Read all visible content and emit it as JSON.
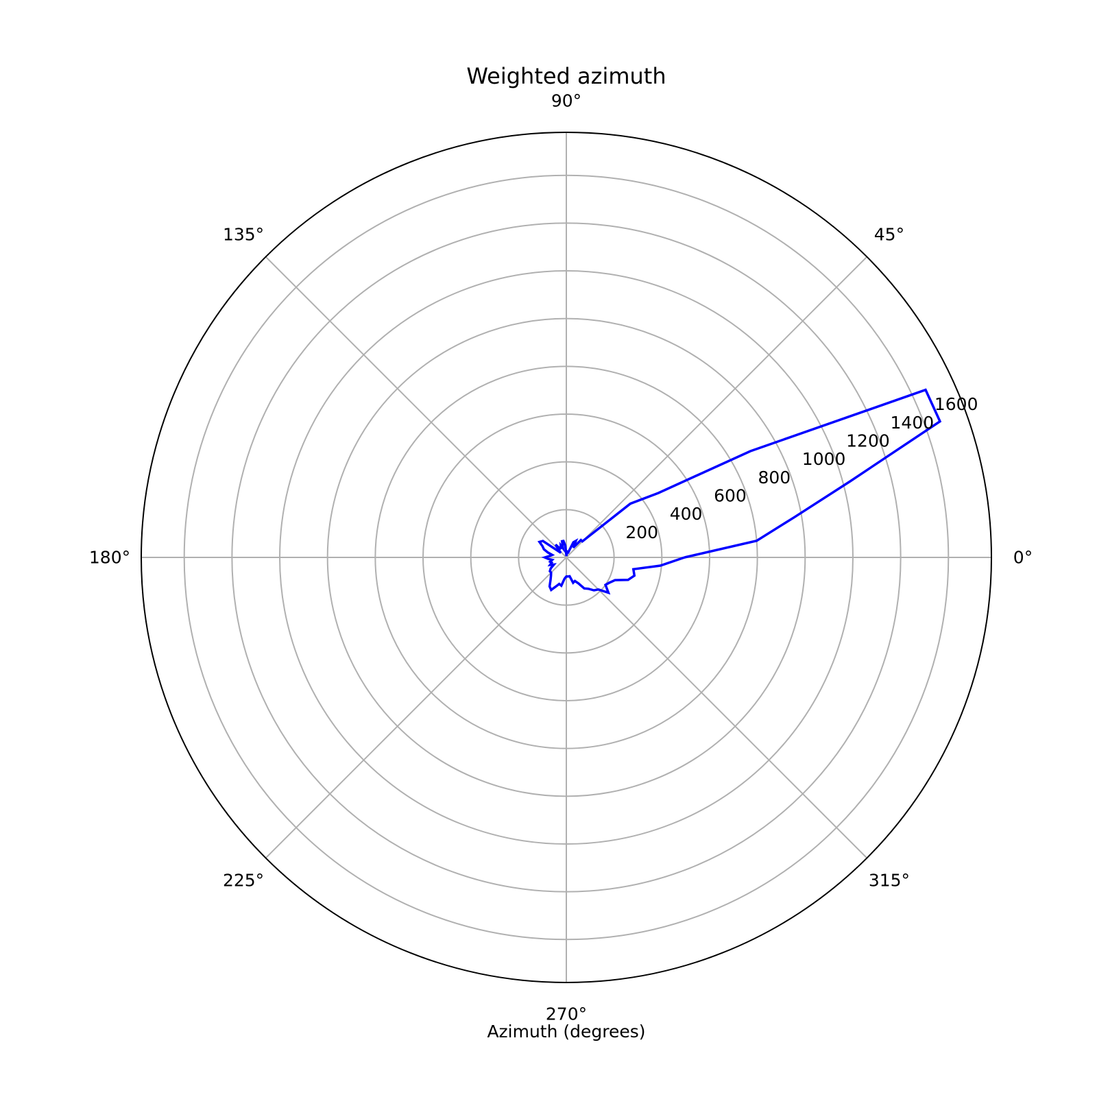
{
  "chart_data": {
    "type": "line",
    "projection": "polar",
    "title": "Weighted azimuth",
    "xlabel": "Azimuth (degrees)",
    "ylabel": "",
    "theta_unit": "degrees",
    "theta_ticks": [
      "0°",
      "45°",
      "90°",
      "135°",
      "180°",
      "225°",
      "270°",
      "315°"
    ],
    "r_ticks": [
      "200",
      "400",
      "600",
      "800",
      "1000",
      "1200",
      "1400",
      "1600"
    ],
    "r_tick_values": [
      200,
      400,
      600,
      800,
      1000,
      1200,
      1400,
      1600
    ],
    "rlim": [
      0,
      1780
    ],
    "grid": true,
    "line_color": "#0000ff",
    "grid_color": "#b0b0b0",
    "series": [
      {
        "theta": [
          0,
          5,
          10,
          15,
          20,
          25,
          30,
          35,
          40,
          45,
          50,
          55,
          60,
          65,
          70,
          75,
          80,
          85,
          90,
          95,
          100,
          105,
          110,
          115,
          120,
          125,
          130,
          135,
          140,
          145,
          150,
          155,
          160,
          165,
          170,
          175,
          180,
          185,
          190,
          195,
          200,
          205,
          210,
          215,
          220,
          225,
          230,
          235,
          240,
          245,
          250,
          255,
          260,
          265,
          270,
          275,
          280,
          285,
          290,
          295,
          300,
          305,
          310,
          315,
          320,
          325,
          330,
          335,
          340,
          345,
          350,
          355,
          360
        ],
        "r": [
          495,
          800,
          970,
          1230,
          1665,
          1660,
          890,
          470,
          350,
          95,
          95,
          50,
          80,
          70,
          18,
          25,
          25,
          10,
          10,
          50,
          70,
          70,
          40,
          55,
          45,
          45,
          70,
          45,
          30,
          120,
          130,
          110,
          100,
          80,
          60,
          70,
          90,
          75,
          60,
          70,
          65,
          75,
          60,
          80,
          90,
          90,
          100,
          115,
          140,
          150,
          130,
          115,
          120,
          90,
          80,
          80,
          80,
          110,
          105,
          120,
          150,
          160,
          180,
          190,
          230,
          200,
          210,
          225,
          275,
          295,
          285,
          395,
          495
        ]
      }
    ]
  }
}
